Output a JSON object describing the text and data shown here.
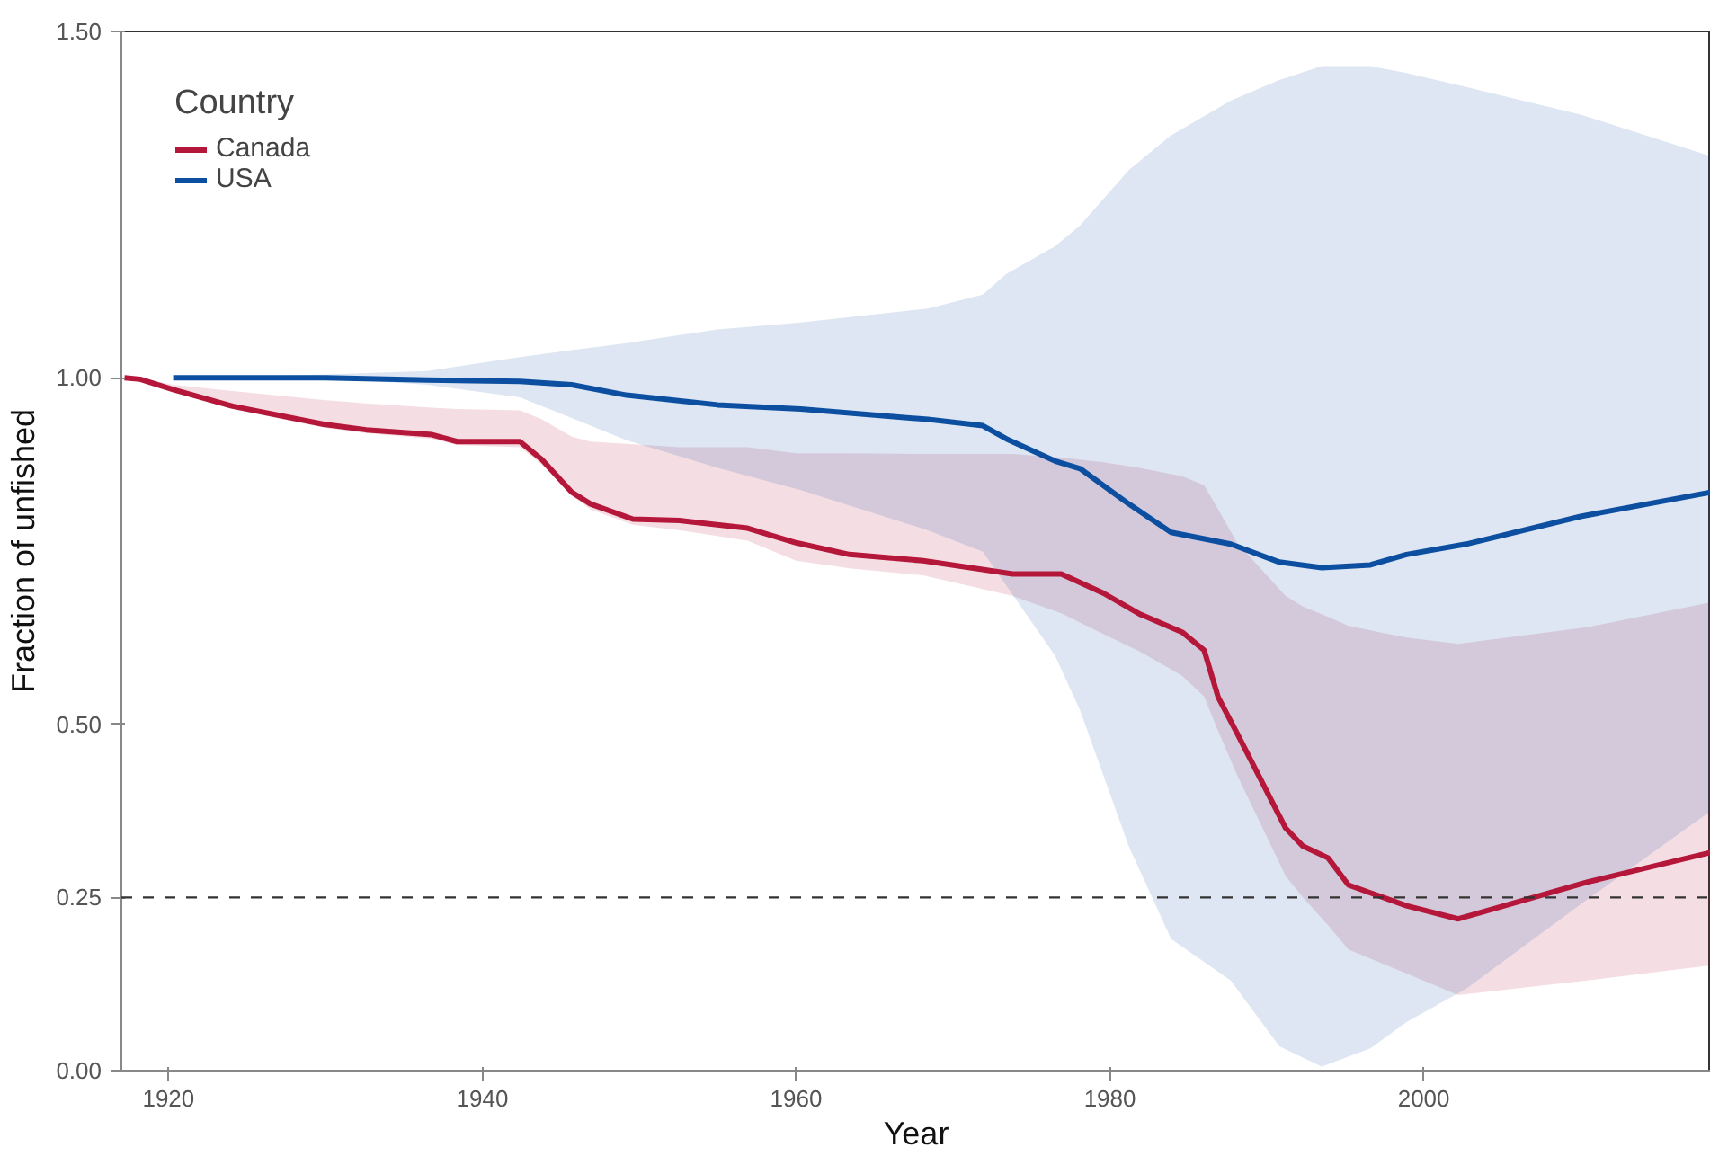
{
  "chart_data": {
    "type": "line",
    "xlabel": "Year",
    "ylabel": "Fraction of unfished",
    "legend_title": "Country",
    "legend": "top left",
    "grid": false,
    "line_style": "solid",
    "marker": "none",
    "xlim": [
      1917.0,
      2018.3
    ],
    "xticks": [
      1920,
      1940,
      1960,
      1980,
      2000
    ],
    "ylim": [
      0,
      1.5
    ],
    "yticks": [
      {
        "value": 0,
        "label": "0.00"
      },
      {
        "value": 0.25,
        "label": "0.25"
      },
      {
        "value": 0.5,
        "label": "0.50"
      },
      {
        "value": 1.0,
        "label": "1.00"
      },
      {
        "value": 1.5,
        "label": "1.50"
      }
    ],
    "ref_lines": [
      {
        "axis": "y",
        "value": 0.25,
        "label": null,
        "color": "#333333",
        "line_style": "dashed"
      }
    ],
    "series": [
      {
        "name": "Canada",
        "color": "#b5173a",
        "x": [
          1917.2,
          1918.2,
          1920.3,
          1924.1,
          1929.9,
          1932.6,
          1936.8,
          1938.4,
          1942.4,
          1943.8,
          1945.7,
          1946.9,
          1949.6,
          1952.6,
          1956.9,
          1960.0,
          1963.4,
          1968.1,
          1973.8,
          1976.9,
          1979.6,
          1981.9,
          1984.6,
          1986.0,
          1986.9,
          1988.1,
          1991.2,
          1992.3,
          1993.9,
          1995.2,
          1998.9,
          2002.2,
          2010.4,
          2018.3
        ],
        "values": [
          1.0,
          0.998,
          0.983,
          0.959,
          0.933,
          0.925,
          0.918,
          0.908,
          0.908,
          0.882,
          0.835,
          0.818,
          0.796,
          0.794,
          0.783,
          0.762,
          0.745,
          0.736,
          0.717,
          0.717,
          0.689,
          0.659,
          0.633,
          0.607,
          0.539,
          0.487,
          0.35,
          0.324,
          0.307,
          0.268,
          0.238,
          0.219,
          0.272,
          0.315
        ],
        "lower": [
          1.0,
          0.996,
          0.98,
          0.955,
          0.928,
          0.92,
          0.912,
          0.903,
          0.9,
          0.875,
          0.83,
          0.81,
          0.788,
          0.78,
          0.765,
          0.736,
          0.725,
          0.715,
          0.685,
          0.66,
          0.63,
          0.605,
          0.57,
          0.54,
          0.49,
          0.427,
          0.281,
          0.25,
          0.21,
          0.175,
          0.14,
          0.109,
          0.13,
          0.152
        ],
        "upper": [
          1.0,
          1.0,
          0.99,
          0.981,
          0.968,
          0.963,
          0.957,
          0.955,
          0.953,
          0.94,
          0.915,
          0.908,
          0.904,
          0.9,
          0.9,
          0.891,
          0.891,
          0.89,
          0.89,
          0.885,
          0.878,
          0.87,
          0.858,
          0.845,
          0.81,
          0.762,
          0.685,
          0.67,
          0.655,
          0.642,
          0.625,
          0.616,
          0.64,
          0.676
        ]
      },
      {
        "name": "USA",
        "color": "#0c4fa0",
        "x": [
          1920.3,
          1930,
          1936.5,
          1942.4,
          1945.7,
          1949.2,
          1955,
          1960.3,
          1968.4,
          1971.9,
          1973.4,
          1976.5,
          1978.1,
          1981.2,
          1983.9,
          1987.7,
          1990.8,
          1993.5,
          1996.6,
          1998.9,
          2002.7,
          2010,
          2018.3
        ],
        "values": [
          1.0,
          1.0,
          0.997,
          0.995,
          0.99,
          0.975,
          0.961,
          0.955,
          0.94,
          0.931,
          0.912,
          0.88,
          0.869,
          0.818,
          0.777,
          0.76,
          0.734,
          0.726,
          0.73,
          0.745,
          0.76,
          0.8,
          0.835
        ],
        "lower": [
          1.0,
          1.0,
          0.99,
          0.972,
          0.942,
          0.91,
          0.87,
          0.838,
          0.78,
          0.749,
          0.7,
          0.599,
          0.52,
          0.324,
          0.19,
          0.13,
          0.035,
          0.006,
          0.032,
          0.07,
          0.118,
          0.24,
          0.375
        ],
        "upper": [
          1.0,
          1.005,
          1.01,
          1.03,
          1.04,
          1.05,
          1.07,
          1.08,
          1.1,
          1.12,
          1.15,
          1.19,
          1.22,
          1.3,
          1.35,
          1.4,
          1.43,
          1.45,
          1.45,
          1.44,
          1.42,
          1.38,
          1.32
        ]
      }
    ]
  }
}
